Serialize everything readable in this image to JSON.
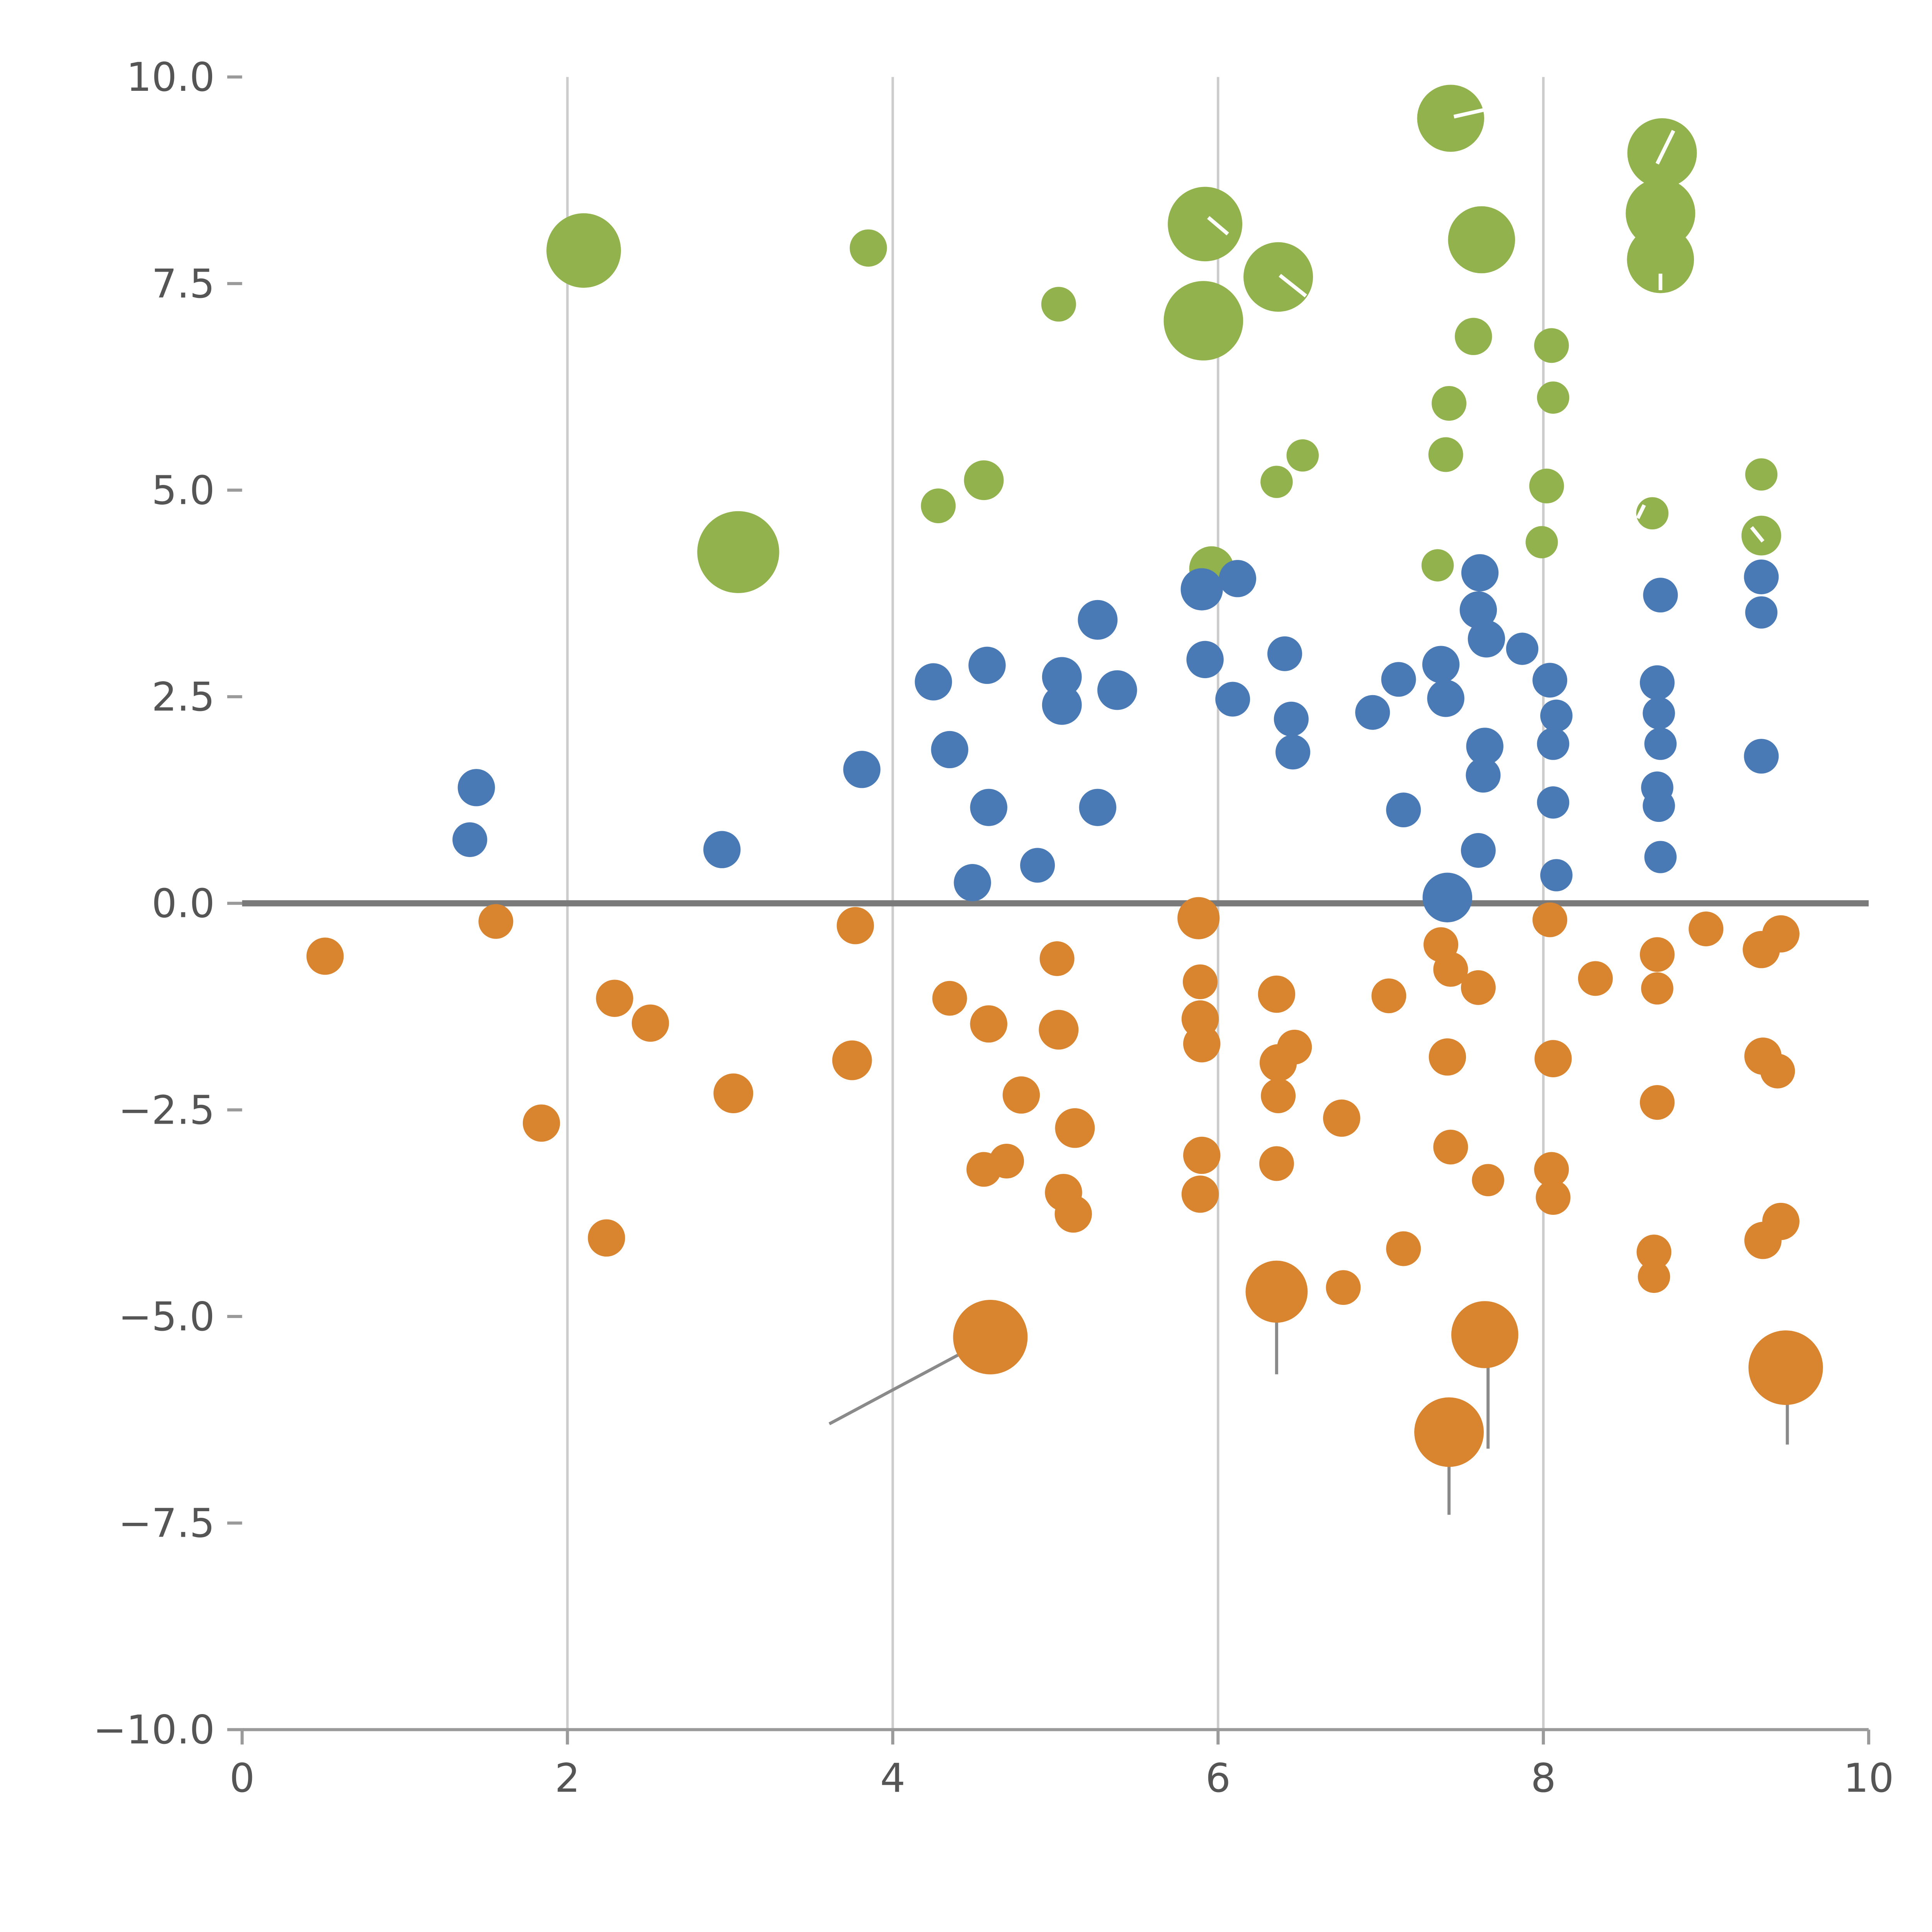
{
  "page": {
    "background": "#ffffff"
  },
  "chart_data": {
    "type": "scatter",
    "title": "",
    "xlabel": "",
    "ylabel": "",
    "xlim": [
      0,
      10
    ],
    "ylim": [
      -10,
      10
    ],
    "grid": "vertical-only",
    "legend": "none",
    "x_ticks": {
      "values": [
        0,
        2,
        4,
        6,
        8,
        10
      ],
      "labels": [
        "0",
        "2",
        "4",
        "6",
        "8",
        "10"
      ]
    },
    "y_ticks": {
      "values": [
        10.0,
        7.5,
        5.0,
        2.5,
        0.0,
        -2.5,
        -5.0,
        -7.5,
        -10.0
      ],
      "labels": [
        "10.0",
        "7.5",
        "5.0",
        "2.5",
        "0.0",
        "−2.5",
        "−5.0",
        "−7.5",
        "−10.0"
      ]
    },
    "grid_x": [
      2,
      4,
      6,
      8
    ],
    "zero_line_y": 0,
    "colors": {
      "grid": "#cccccc",
      "zero_line": "#7a7a7a",
      "axis": "#9a9a9a",
      "tick_label": "#555555",
      "annotation": "#8a8a8a",
      "white_mark": "#ffffff"
    },
    "series": [
      {
        "name": "green-bubbles",
        "color": "#92b24e",
        "points": [
          [
            2.1,
            7.9,
            30
          ],
          [
            3.05,
            4.25,
            33
          ],
          [
            3.85,
            7.93,
            15
          ],
          [
            4.28,
            4.81,
            14
          ],
          [
            4.56,
            5.12,
            16
          ],
          [
            5.02,
            7.25,
            14
          ],
          [
            5.92,
            8.22,
            30
          ],
          [
            5.91,
            7.05,
            32
          ],
          [
            6.37,
            7.58,
            28
          ],
          [
            6.36,
            5.1,
            13
          ],
          [
            6.52,
            5.42,
            13
          ],
          [
            5.96,
            4.05,
            18
          ],
          [
            7.4,
            5.43,
            14
          ],
          [
            7.35,
            4.09,
            13
          ],
          [
            7.43,
            9.5,
            27
          ],
          [
            7.62,
            8.03,
            27
          ],
          [
            7.57,
            6.86,
            15
          ],
          [
            7.42,
            6.05,
            14
          ],
          [
            8.05,
            6.75,
            14
          ],
          [
            8.06,
            6.12,
            13
          ],
          [
            8.02,
            5.05,
            14
          ],
          [
            7.99,
            4.37,
            13
          ],
          [
            8.73,
            9.08,
            28
          ],
          [
            8.72,
            8.35,
            28
          ],
          [
            8.72,
            7.79,
            27
          ],
          [
            8.67,
            4.72,
            13
          ],
          [
            9.34,
            5.19,
            13
          ],
          [
            9.34,
            4.45,
            16
          ]
        ]
      },
      {
        "name": "blue-bubbles",
        "color": "#4a7ab5",
        "points": [
          [
            1.44,
            1.4,
            15
          ],
          [
            1.4,
            0.77,
            14
          ],
          [
            2.95,
            0.65,
            15
          ],
          [
            3.81,
            1.62,
            15
          ],
          [
            4.25,
            2.68,
            15
          ],
          [
            4.35,
            1.86,
            15
          ],
          [
            4.49,
            0.25,
            15
          ],
          [
            4.58,
            2.88,
            15
          ],
          [
            4.59,
            1.16,
            15
          ],
          [
            4.89,
            0.46,
            14
          ],
          [
            5.04,
            2.74,
            16
          ],
          [
            5.04,
            2.4,
            16
          ],
          [
            5.26,
            3.43,
            16
          ],
          [
            5.26,
            1.16,
            15
          ],
          [
            5.38,
            2.58,
            16
          ],
          [
            5.9,
            3.8,
            17
          ],
          [
            5.92,
            2.95,
            15
          ],
          [
            6.12,
            3.93,
            15
          ],
          [
            6.09,
            2.47,
            14
          ],
          [
            6.41,
            3.02,
            14
          ],
          [
            6.45,
            2.23,
            14
          ],
          [
            6.46,
            1.83,
            14
          ],
          [
            6.95,
            2.31,
            14
          ],
          [
            7.11,
            2.71,
            14
          ],
          [
            7.14,
            1.13,
            14
          ],
          [
            7.37,
            2.89,
            15
          ],
          [
            7.4,
            2.48,
            15
          ],
          [
            7.41,
            0.07,
            20
          ],
          [
            7.61,
            4.0,
            15
          ],
          [
            7.6,
            3.55,
            15
          ],
          [
            7.65,
            3.2,
            15
          ],
          [
            7.64,
            1.9,
            15
          ],
          [
            7.63,
            1.55,
            14
          ],
          [
            7.6,
            0.64,
            14
          ],
          [
            7.87,
            3.08,
            13
          ],
          [
            8.04,
            2.7,
            14
          ],
          [
            8.08,
            2.27,
            13
          ],
          [
            8.06,
            1.93,
            13
          ],
          [
            8.06,
            1.22,
            13
          ],
          [
            8.08,
            0.34,
            13
          ],
          [
            8.72,
            3.73,
            14
          ],
          [
            8.7,
            2.67,
            14
          ],
          [
            8.71,
            2.3,
            13
          ],
          [
            8.72,
            1.93,
            13
          ],
          [
            8.7,
            1.4,
            13
          ],
          [
            8.71,
            1.18,
            13
          ],
          [
            8.72,
            0.56,
            13
          ],
          [
            9.34,
            3.95,
            14
          ],
          [
            9.34,
            3.52,
            13
          ],
          [
            9.34,
            1.78,
            14
          ]
        ]
      },
      {
        "name": "orange-bubbles",
        "color": "#d9842f",
        "points": [
          [
            0.51,
            -0.64,
            15
          ],
          [
            1.56,
            -0.22,
            14
          ],
          [
            1.84,
            -2.66,
            15
          ],
          [
            2.29,
            -1.15,
            15
          ],
          [
            2.51,
            -1.45,
            15
          ],
          [
            2.24,
            -4.05,
            15
          ],
          [
            3.02,
            -2.3,
            16
          ],
          [
            3.75,
            -1.9,
            16
          ],
          [
            3.77,
            -0.27,
            15
          ],
          [
            4.35,
            -1.15,
            14
          ],
          [
            4.59,
            -1.46,
            15
          ],
          [
            4.56,
            -3.22,
            14
          ],
          [
            4.7,
            -3.12,
            14
          ],
          [
            4.6,
            -5.25,
            30
          ],
          [
            4.79,
            -2.32,
            15
          ],
          [
            5.01,
            -0.67,
            14
          ],
          [
            5.02,
            -1.53,
            16
          ],
          [
            5.05,
            -3.5,
            15
          ],
          [
            5.11,
            -3.76,
            15
          ],
          [
            5.12,
            -2.72,
            16
          ],
          [
            5.88,
            -0.18,
            17
          ],
          [
            5.89,
            -0.95,
            14
          ],
          [
            5.89,
            -1.4,
            15
          ],
          [
            5.9,
            -1.7,
            15
          ],
          [
            5.9,
            -3.05,
            15
          ],
          [
            5.89,
            -3.52,
            15
          ],
          [
            6.36,
            -1.1,
            15
          ],
          [
            6.37,
            -1.93,
            15
          ],
          [
            6.47,
            -1.74,
            14
          ],
          [
            6.37,
            -2.33,
            14
          ],
          [
            6.36,
            -3.15,
            14
          ],
          [
            6.36,
            -4.7,
            25
          ],
          [
            6.76,
            -2.6,
            15
          ],
          [
            6.77,
            -4.65,
            14
          ],
          [
            7.05,
            -1.12,
            14
          ],
          [
            7.14,
            -4.18,
            14
          ],
          [
            7.37,
            -0.5,
            14
          ],
          [
            7.43,
            -0.8,
            14
          ],
          [
            7.41,
            -1.86,
            15
          ],
          [
            7.43,
            -2.95,
            14
          ],
          [
            7.42,
            -6.4,
            28
          ],
          [
            7.6,
            -1.02,
            14
          ],
          [
            7.66,
            -3.35,
            13
          ],
          [
            7.64,
            -5.22,
            27
          ],
          [
            8.04,
            -0.2,
            14
          ],
          [
            8.06,
            -1.88,
            15
          ],
          [
            8.05,
            -3.22,
            14
          ],
          [
            8.06,
            -3.56,
            14
          ],
          [
            8.32,
            -0.91,
            14
          ],
          [
            8.7,
            -0.62,
            14
          ],
          [
            8.7,
            -1.03,
            13
          ],
          [
            8.7,
            -2.41,
            14
          ],
          [
            8.68,
            -4.22,
            14
          ],
          [
            8.68,
            -4.52,
            13
          ],
          [
            9.0,
            -0.31,
            14
          ],
          [
            9.34,
            -0.56,
            15
          ],
          [
            9.46,
            -0.37,
            15
          ],
          [
            9.35,
            -1.85,
            15
          ],
          [
            9.44,
            -2.03,
            14
          ],
          [
            9.35,
            -4.08,
            15
          ],
          [
            9.46,
            -3.85,
            15
          ],
          [
            9.49,
            -5.62,
            30
          ]
        ]
      }
    ],
    "annotations": [
      {
        "x1": 3.61,
        "y1": -6.3,
        "x2": 4.56,
        "y2": -5.3,
        "color": "#8a8a8a"
      },
      {
        "x1": 6.36,
        "y1": -4.95,
        "x2": 6.36,
        "y2": -5.7,
        "color": "#8a8a8a"
      },
      {
        "x1": 7.42,
        "y1": -6.82,
        "x2": 7.42,
        "y2": -7.4,
        "color": "#8a8a8a"
      },
      {
        "x1": 7.66,
        "y1": -5.62,
        "x2": 7.66,
        "y2": -6.6,
        "color": "#8a8a8a"
      },
      {
        "x1": 9.5,
        "y1": -5.92,
        "x2": 9.5,
        "y2": -6.55,
        "color": "#8a8a8a"
      }
    ],
    "white_marks": [
      {
        "x1": 7.45,
        "y1": 9.52,
        "x2": 7.63,
        "y2": 9.6
      },
      {
        "x1": 8.8,
        "y1": 9.35,
        "x2": 8.7,
        "y2": 8.95
      },
      {
        "x1": 5.94,
        "y1": 8.3,
        "x2": 6.06,
        "y2": 8.1
      },
      {
        "x1": 6.38,
        "y1": 7.6,
        "x2": 6.54,
        "y2": 7.35
      },
      {
        "x1": 8.72,
        "y1": 7.62,
        "x2": 8.72,
        "y2": 7.42
      },
      {
        "x1": 9.28,
        "y1": 4.55,
        "x2": 9.35,
        "y2": 4.38
      },
      {
        "x1": 8.62,
        "y1": 4.82,
        "x2": 8.58,
        "y2": 4.66
      }
    ]
  }
}
